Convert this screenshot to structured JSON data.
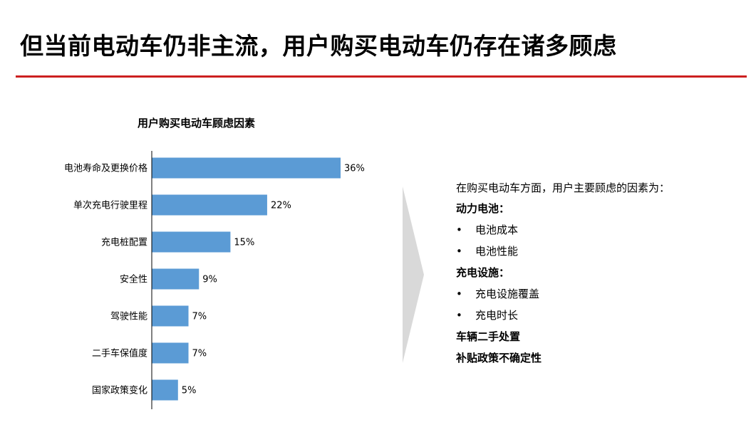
{
  "slide": {
    "title": "但当前电动车仍非主流，用户购买电动车仍存在诸多顾虑",
    "rule_color": "#cc1f1f"
  },
  "chart_data": {
    "type": "bar",
    "orientation": "horizontal",
    "title": "用户购买电动车顾虑因素",
    "categories": [
      "电池寿命及更换价格",
      "单次充电行驶里程",
      "充电桩配置",
      "安全性",
      "驾驶性能",
      "二手车保值度",
      "国家政策变化"
    ],
    "values": [
      36,
      22,
      15,
      9,
      7,
      7,
      5
    ],
    "value_labels": [
      "36%",
      "22%",
      "15%",
      "9%",
      "7%",
      "7%",
      "5%"
    ],
    "unit": "%",
    "xlim": [
      0,
      36
    ],
    "bar_color": "#5b9bd5",
    "grid": false,
    "legend": "none"
  },
  "arrow": {
    "icon": "chevron-right-icon",
    "color": "#d9d9d9"
  },
  "panel": {
    "intro": "在购买电动车方面，用户主要顾虑的因素为：",
    "bullet_char": "•",
    "groups": [
      {
        "heading": "动力电池：",
        "items": [
          "电池成本",
          "电池性能"
        ]
      },
      {
        "heading": "充电设施：",
        "items": [
          "充电设施覆盖",
          "充电时长"
        ]
      }
    ],
    "standalone": [
      "车辆二手处置",
      "补贴政策不确定性"
    ]
  }
}
